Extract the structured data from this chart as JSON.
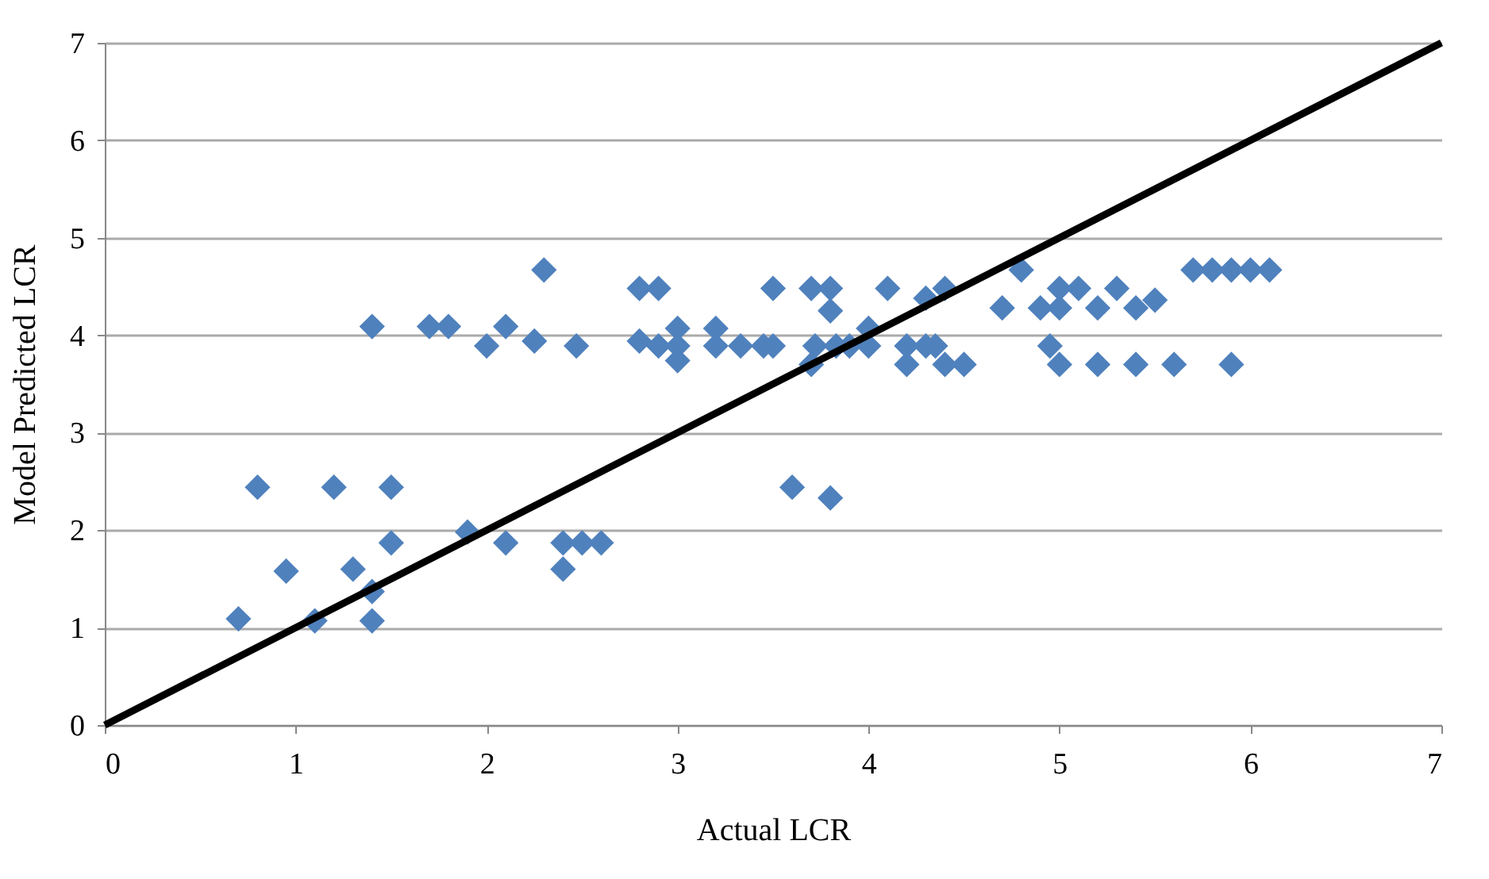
{
  "chart_data": {
    "type": "scatter",
    "xlabel": "Actual  LCR",
    "ylabel": "Model Predicted LCR",
    "xlim": [
      0,
      7
    ],
    "ylim": [
      0,
      7
    ],
    "xticks": [
      0,
      1,
      2,
      3,
      4,
      5,
      6,
      7
    ],
    "yticks": [
      0,
      1,
      2,
      3,
      4,
      5,
      6,
      7
    ],
    "grid": "y",
    "marker": "diamond",
    "series": [
      {
        "color": "#4f81bd",
        "x": [
          0.7,
          0.8,
          0.95,
          1.1,
          1.2,
          1.3,
          1.4,
          1.4,
          1.4,
          1.5,
          1.5,
          1.7,
          1.8,
          1.9,
          2.0,
          2.1,
          2.1,
          2.25,
          2.3,
          2.4,
          2.4,
          2.5,
          2.47,
          2.6,
          2.8,
          2.8,
          2.9,
          2.9,
          3.0,
          3.0,
          3.0,
          3.2,
          3.2,
          3.33,
          3.45,
          3.5,
          3.5,
          3.6,
          3.7,
          3.7,
          3.72,
          3.8,
          3.8,
          3.8,
          3.83,
          3.9,
          4.0,
          4.0,
          4.1,
          4.2,
          4.2,
          4.3,
          4.3,
          4.35,
          4.4,
          4.4,
          4.5,
          4.7,
          4.8,
          4.9,
          4.95,
          5.0,
          5.0,
          5.0,
          5.1,
          5.2,
          5.2,
          5.3,
          5.4,
          5.4,
          5.5,
          5.6,
          5.7,
          5.8,
          5.9,
          5.9,
          6.0,
          6.1
        ],
        "values": [
          1.09,
          2.44,
          1.58,
          1.07,
          2.44,
          1.6,
          1.37,
          1.07,
          4.09,
          2.44,
          1.87,
          4.09,
          4.09,
          1.98,
          3.89,
          4.09,
          1.87,
          3.94,
          4.67,
          1.87,
          1.6,
          1.87,
          3.89,
          1.87,
          4.48,
          3.94,
          4.48,
          3.89,
          4.07,
          3.89,
          3.74,
          4.07,
          3.89,
          3.89,
          3.89,
          4.48,
          3.89,
          2.44,
          4.48,
          3.7,
          3.89,
          4.48,
          4.25,
          2.33,
          3.89,
          3.89,
          4.07,
          3.89,
          4.48,
          3.89,
          3.7,
          4.38,
          3.89,
          3.89,
          4.48,
          3.7,
          3.7,
          4.28,
          4.67,
          4.28,
          3.89,
          4.48,
          4.28,
          3.7,
          4.48,
          4.28,
          3.7,
          4.48,
          4.28,
          3.7,
          4.36,
          3.7,
          4.67,
          4.67,
          4.67,
          3.7,
          4.67,
          4.67
        ]
      },
      {
        "type": "line",
        "color": "#000000",
        "marker": "none",
        "line_style": "solid",
        "x": [
          0,
          7
        ],
        "values": [
          0,
          7
        ]
      }
    ]
  }
}
